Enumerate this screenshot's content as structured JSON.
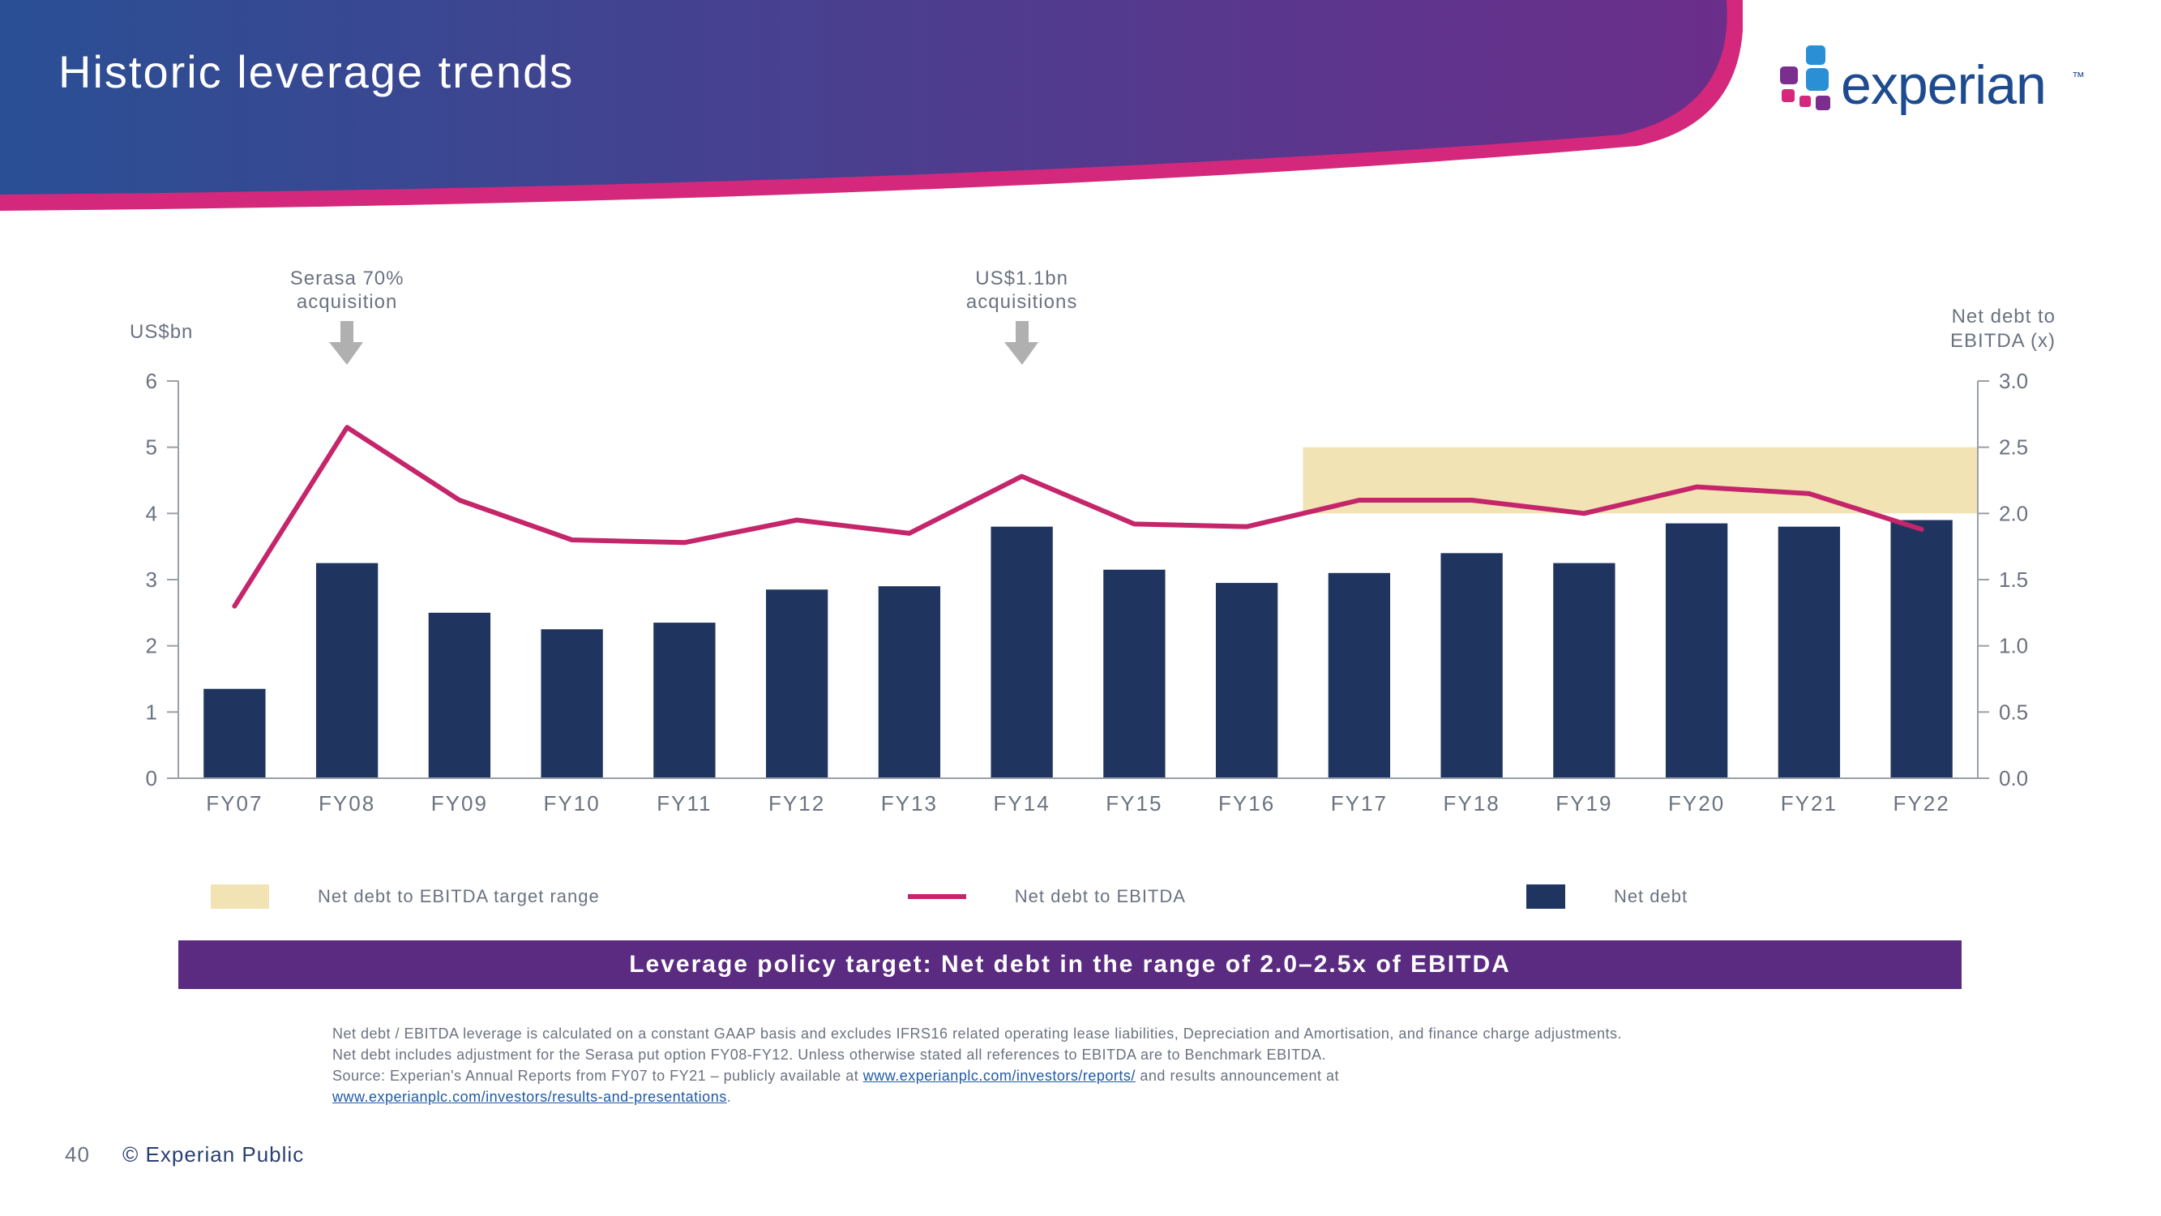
{
  "brand": {
    "name": "experian",
    "logo_text_color": "#1e4b8f",
    "logo_squares": [
      "#2a8fd4",
      "#7b2e8e",
      "#2a8fd4",
      "#d4287c",
      "#d4287c",
      "#7b2e8e"
    ],
    "tm": "™"
  },
  "header": {
    "title": "Historic leverage trends",
    "band_gradient_from": "#2a4f94",
    "band_gradient_to": "#6b2e8a",
    "band_pink": "#d4287c",
    "title_color": "#ffffff"
  },
  "chart": {
    "type": "bar+line",
    "background_color": "#ffffff",
    "grid_color": "#e3e3e3",
    "tick_label_color": "#6b7280",
    "tick_fontsize": 26,
    "left_axis": {
      "title": "US$bn",
      "ylim": [
        0,
        6
      ],
      "ticks": [
        0,
        1,
        2,
        3,
        4,
        5,
        6
      ]
    },
    "right_axis": {
      "title": "Net debt to EBITDA (x)",
      "ylim": [
        0,
        3
      ],
      "ticks": [
        0.0,
        0.5,
        1.0,
        1.5,
        2.0,
        2.5,
        3.0
      ]
    },
    "categories": [
      "FY07",
      "FY08",
      "FY09",
      "FY10",
      "FY11",
      "FY12",
      "FY13",
      "FY14",
      "FY15",
      "FY16",
      "FY17",
      "FY18",
      "FY19",
      "FY20",
      "FY21",
      "FY22"
    ],
    "bars": {
      "label": "Net debt",
      "color": "#1f355f",
      "values": [
        1.35,
        3.25,
        2.5,
        2.25,
        2.35,
        2.85,
        2.9,
        3.8,
        3.15,
        2.95,
        3.1,
        3.4,
        3.25,
        3.85,
        3.8,
        3.9
      ],
      "width_ratio": 0.55
    },
    "line": {
      "label": "Net debt to EBITDA",
      "color": "#c5256a",
      "width": 6,
      "values": [
        1.3,
        2.65,
        2.1,
        1.8,
        1.78,
        1.95,
        1.85,
        2.28,
        1.92,
        1.9,
        2.1,
        2.1,
        2.0,
        2.2,
        2.15,
        1.88
      ]
    },
    "target_band": {
      "label": "Net debt to EBITDA target range",
      "color": "#f1e3b4",
      "ymin": 2.0,
      "ymax": 2.5,
      "x_start_index": 10,
      "x_end_index": 16
    },
    "annotations": [
      {
        "text_line1": "Serasa 70%",
        "text_line2": "acquisition",
        "x_index": 1
      },
      {
        "text_line1": "US$1.1bn",
        "text_line2": "acquisitions",
        "x_index": 7
      }
    ],
    "arrow_color": "#b0b0b0"
  },
  "policy": {
    "text": "Leverage policy target: Net debt in the range of 2.0–2.5x of EBITDA",
    "bg_color": "#5b2b82",
    "text_color": "#ffffff"
  },
  "footnote": {
    "line1": "Net debt / EBITDA leverage is calculated on a constant GAAP basis and excludes IFRS16 related operating lease liabilities, Depreciation and Amortisation, and finance charge adjustments.",
    "line2": "Net debt includes adjustment for the Serasa put option FY08-FY12. Unless otherwise stated all references to EBITDA are to Benchmark EBITDA.",
    "line3a": "Source: Experian's Annual Reports from FY07 to FY21 – publicly available at ",
    "link1": "www.experianplc.com/investors/reports/",
    "line3b": " and results announcement at",
    "link2": "www.experianplc.com/investors/results-and-presentations",
    "period": "."
  },
  "footer": {
    "page": "40",
    "copyright": "© Experian Public"
  }
}
